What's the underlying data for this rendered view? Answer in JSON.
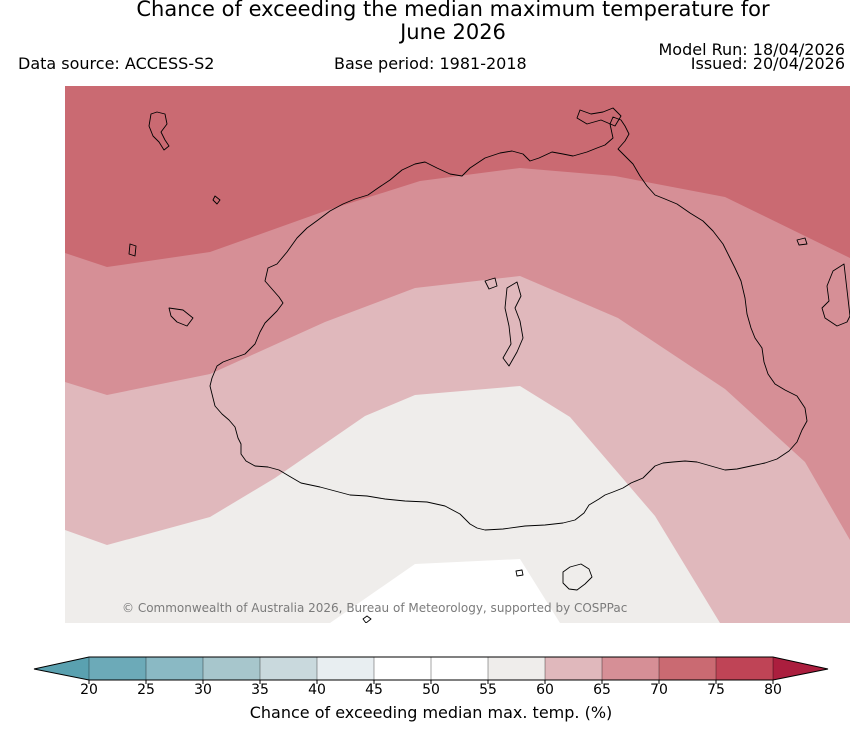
{
  "title_line1": "Chance of exceeding the median maximum temperature for",
  "title_line2": "June 2026",
  "data_source": "Data source: ACCESS-S2",
  "base_period": "Base period: 1981-2018",
  "model_run": "Model Run: 18/04/2026",
  "issued": "Issued: 20/04/2026",
  "copyright": "© Commonwealth of Australia 2026, Bureau of Meteorology, supported by COSPPac",
  "legend": {
    "label": "Chance of exceeding median max. temp. (%)",
    "ticks": [
      "20",
      "25",
      "30",
      "35",
      "40",
      "45",
      "50",
      "55",
      "60",
      "65",
      "70",
      "75",
      "80"
    ],
    "colors": {
      "lt20": "#5aa1b0",
      "20-25": "#6caab8",
      "25-30": "#8ab9c4",
      "30-35": "#a7c6cc",
      "35-40": "#c9d9dd",
      "40-45": "#e8eef1",
      "45-50": "#ffffff",
      "50-55": "#ffffff",
      "55-60": "#efedeb",
      "60-65": "#e0b8bc",
      "65-70": "#d68f96",
      "70-75": "#ca6a72",
      "75-80": "#bf4456",
      "gt80": "#ab1e3e"
    }
  },
  "map": {
    "band_colors": {
      "band_70_75": "#ca6a72",
      "band_65_70": "#d68f96",
      "band_60_65": "#e0b8bc",
      "band_55_60": "#efedeb",
      "band_50_55": "#ffffff"
    }
  }
}
